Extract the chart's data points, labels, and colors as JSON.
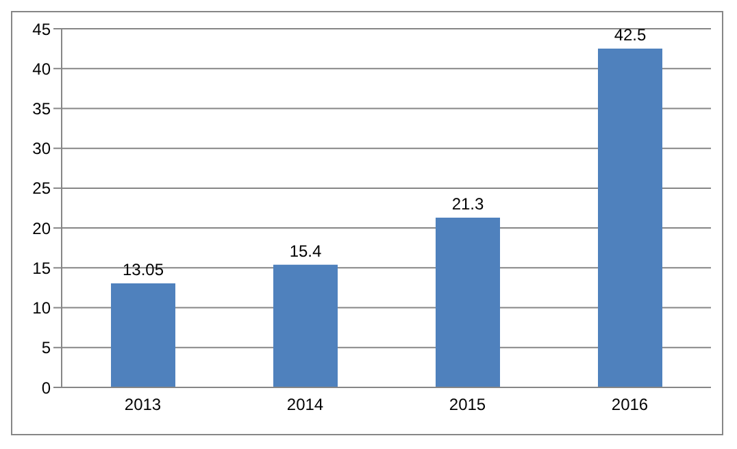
{
  "chart_data": {
    "type": "bar",
    "categories": [
      "2013",
      "2014",
      "2015",
      "2016"
    ],
    "values": [
      13.05,
      15.4,
      21.3,
      42.5
    ],
    "color": "#4f81bd",
    "ylim": [
      0,
      45
    ],
    "yticks": [
      0,
      5,
      10,
      15,
      20,
      25,
      30,
      35,
      40,
      45
    ],
    "grid": "y",
    "data_labels": true
  }
}
